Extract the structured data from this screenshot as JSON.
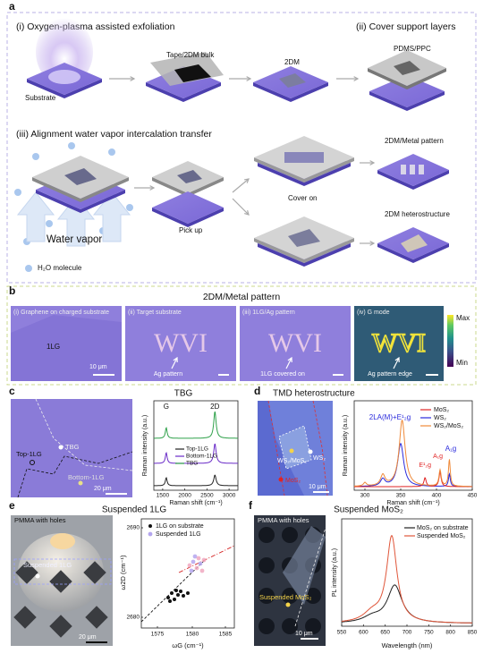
{
  "panel_a": {
    "label": "a",
    "step1": "(i) Oxygen-plasma assisted exfoliation",
    "step2": "(ii) Cover support layers",
    "substrate": "Substrate",
    "tape": "Tape/2DM bulk",
    "twodm": "2DM",
    "pdms": "PDMS/PPC",
    "step3": "(iii) Alignment water vapor intercalation transfer",
    "water_vapor": "Water vapor",
    "h2o": "H₂O molecule",
    "pick_up": "Pick up",
    "cover_on": "Cover on",
    "metal_pattern": "2DM/Metal pattern",
    "heterostructure": "2DM heterostructure"
  },
  "panel_b": {
    "label": "b",
    "title": "2DM/Metal pattern",
    "img1": {
      "caption": "(i) Graphene on charged substrate",
      "text": "1LG",
      "scale": "10 μm"
    },
    "img2": {
      "caption": "(ii) Target substrate",
      "letters": "WVI",
      "arrow_label": "Ag pattern"
    },
    "img3": {
      "caption": "(iii) 1LG/Ag pattern",
      "letters": "WVI",
      "arrow_label": "1LG covered on"
    },
    "img4": {
      "caption": "(iv) G mode",
      "letters": "WVI",
      "arrow_label": "Ag pattern edge",
      "max": "Max",
      "min": "Min"
    }
  },
  "panel_c": {
    "label": "c",
    "title": "TBG",
    "image": {
      "tbg": "TBG",
      "top": "Top-1LG",
      "bottom": "Bottom-1LG",
      "scale": "20 μm"
    },
    "plot": {
      "peak_g": "G",
      "peak_2d": "2D",
      "legend": [
        "Top-1LG",
        "Bottom-1LG",
        "TBG"
      ],
      "ylabel": "Raman intensity (a.u.)",
      "xlabel": "Raman shift (cm⁻¹)",
      "xticks": [
        1500,
        2000,
        2500,
        3000
      ]
    }
  },
  "panel_d": {
    "label": "d",
    "title": "TMD heterostructure",
    "image": {
      "hetero": "WS₂/MoS₂",
      "ws2": "WS₂",
      "mos2": "MoS₂",
      "scale": "10 μm"
    },
    "plot": {
      "peak_main": "2LA(M)+E¹₂g",
      "peak_e": "E¹₂g",
      "peak_a1": "A₁g",
      "peak_a2": "A₁g",
      "legend": [
        "MoS₂",
        "WS₂",
        "WS₂/MoS₂"
      ],
      "ylabel": "Raman intensity (a.u.)",
      "xlabel": "Raman shift (cm⁻¹)",
      "xticks": [
        300,
        350,
        400,
        450
      ]
    }
  },
  "panel_e": {
    "label": "e",
    "title": "Suspended 1LG",
    "image": {
      "pmma": "PMMA with holes",
      "suspended": "Suspended 1LG",
      "scale": "20 μm"
    },
    "plot": {
      "legend": [
        "1LG on substrate",
        "Suspended 1LG"
      ],
      "ylabel": "ω2D (cm⁻¹)",
      "xlabel": "ωG (cm⁻¹)",
      "yticks": [
        2690,
        2680
      ],
      "xticks": [
        1575,
        1580,
        1585
      ]
    }
  },
  "panel_f": {
    "label": "f",
    "title": "Suspended MoS₂",
    "image": {
      "pmma": "PMMA with holes",
      "suspended": "Suspended MoS₂",
      "scale": "10 μm"
    },
    "plot": {
      "legend": [
        "MoS₂ on substrate",
        "Suspended MoS₂"
      ],
      "ylabel": "PL intensity (a.u.)",
      "xlabel": "Wavelength (nm)",
      "xticks": [
        550,
        600,
        650,
        700,
        750,
        800,
        850
      ]
    }
  }
}
